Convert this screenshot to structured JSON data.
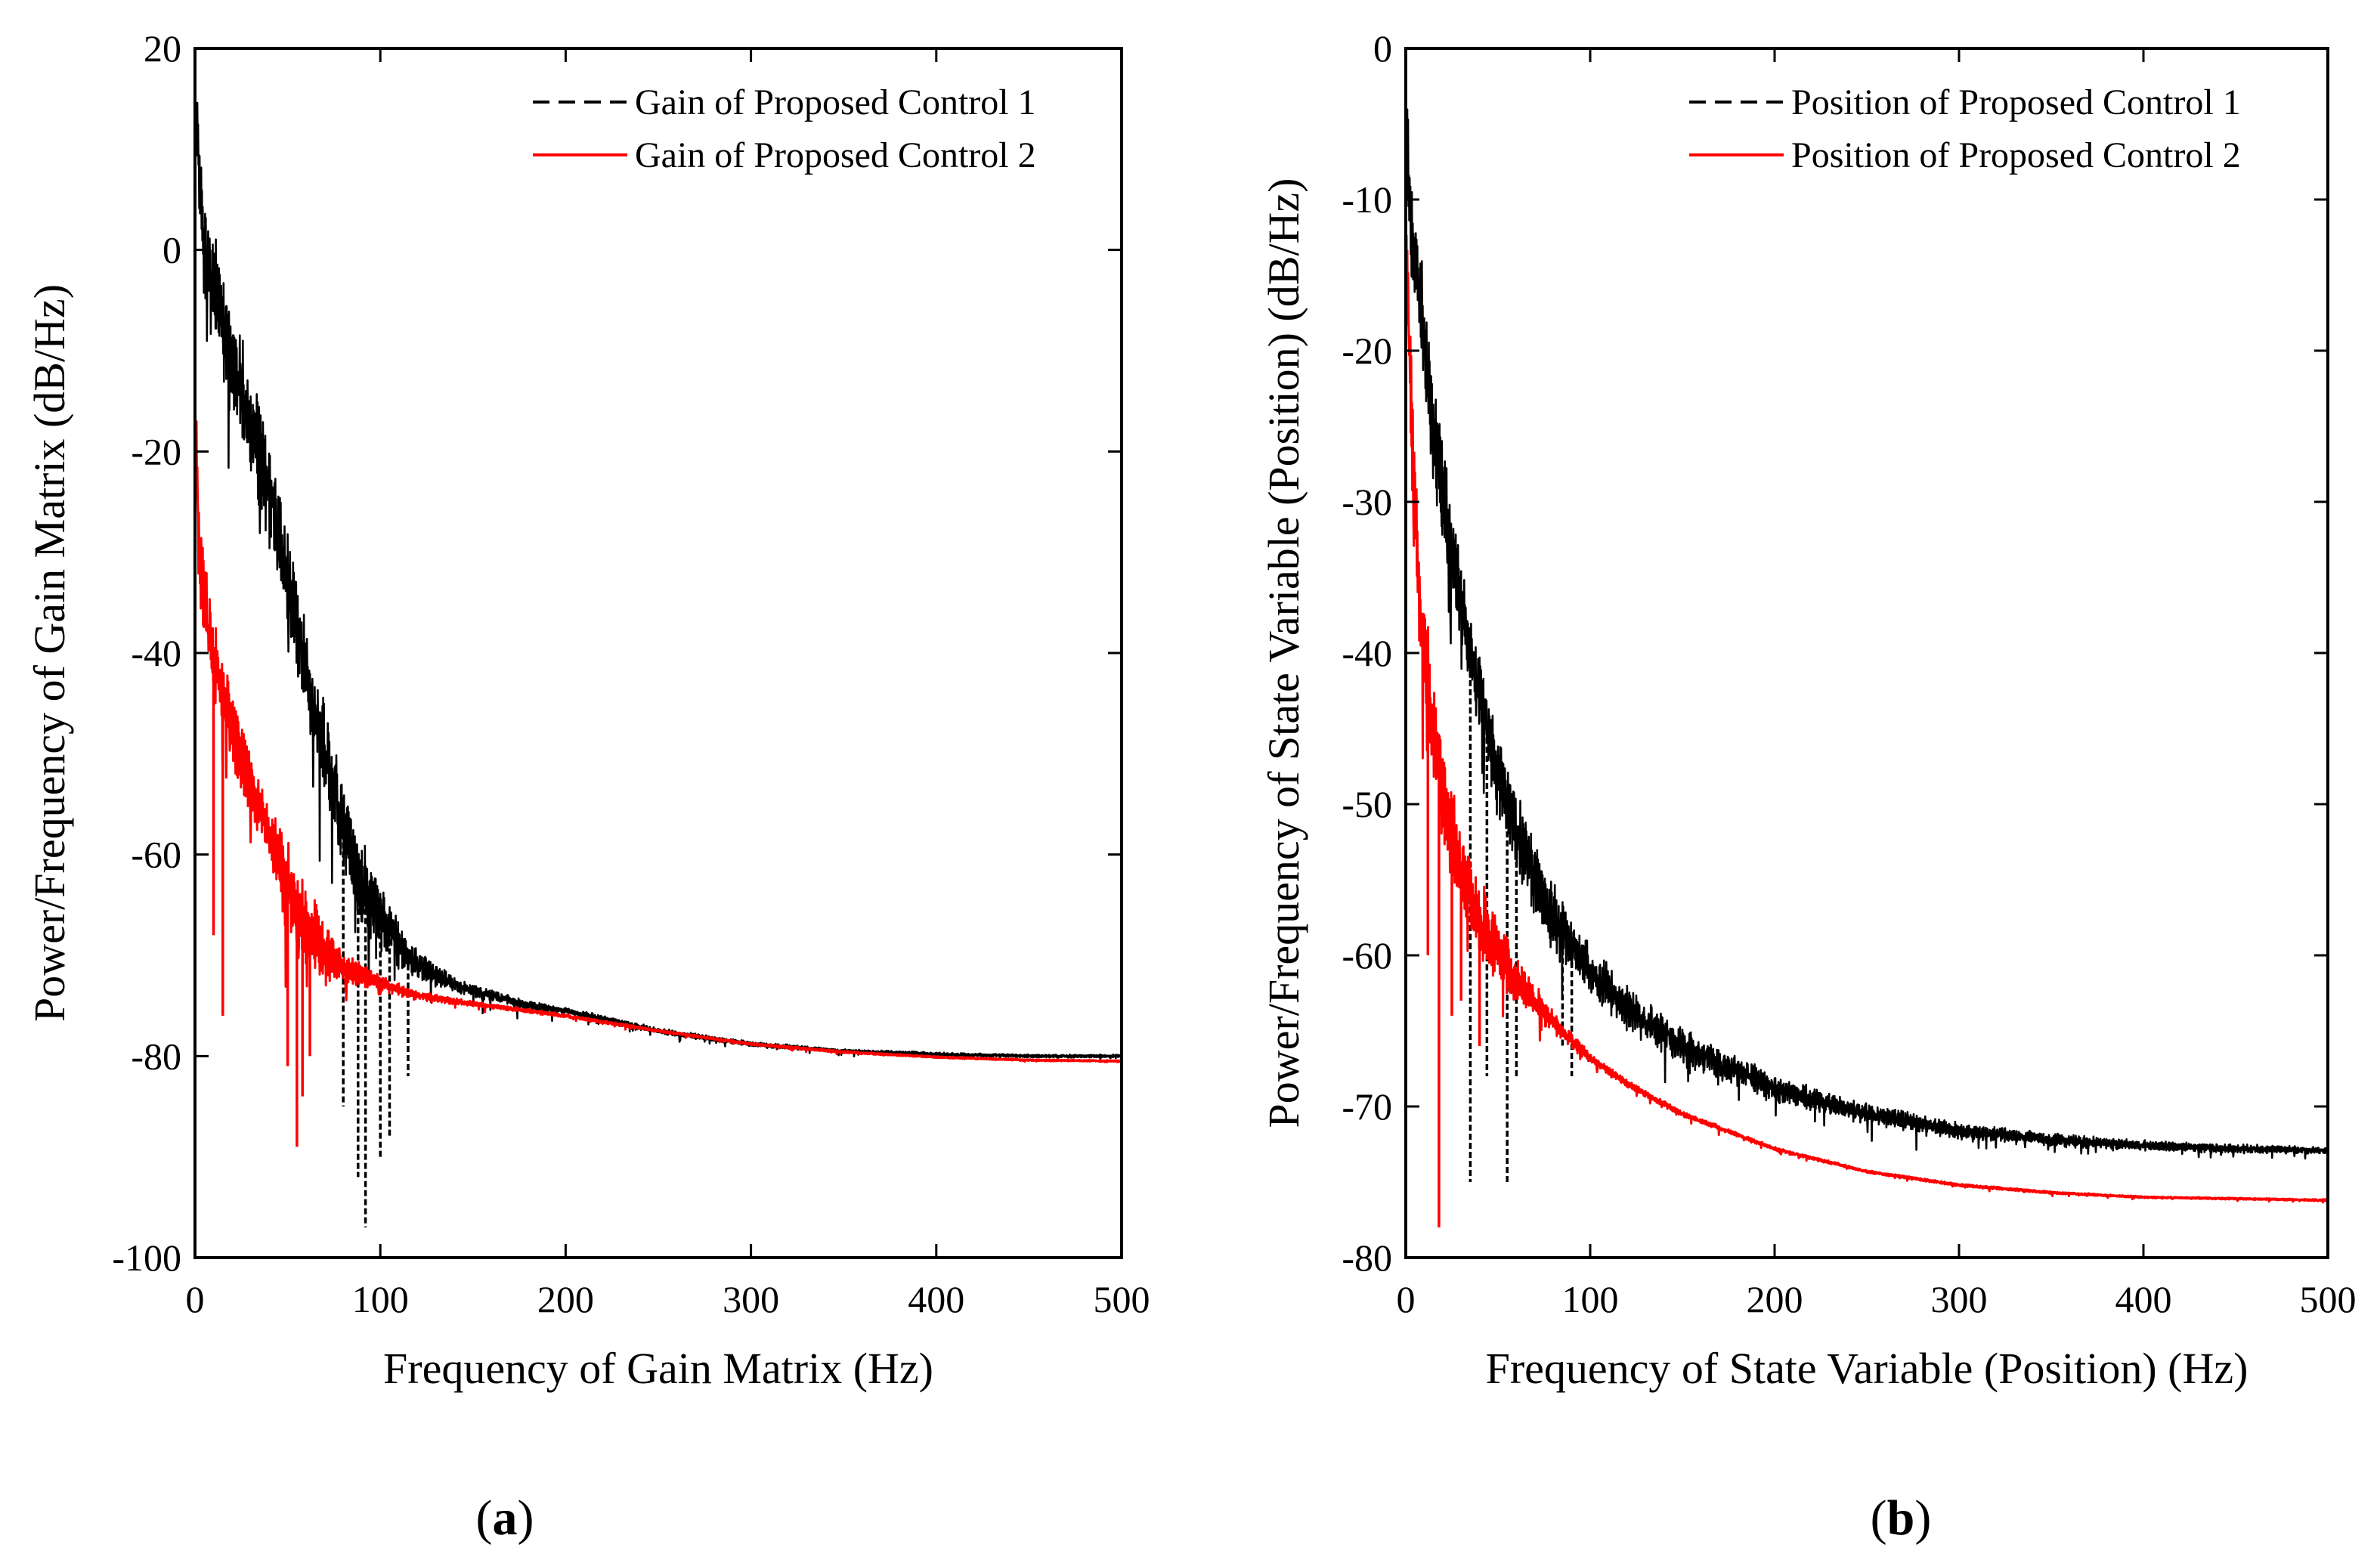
{
  "chart_data": [
    {
      "type": "line",
      "panel_label": "(a)",
      "panel_label_open": "(",
      "panel_label_letter": "a",
      "panel_label_close": ")",
      "title": "",
      "xlabel": "Frequency of Gain Matrix (Hz)",
      "ylabel": "Power/Frequency of Gain Matrix (dB/Hz)",
      "xlim": [
        0,
        500
      ],
      "ylim": [
        -100,
        20
      ],
      "xticks": [
        0,
        100,
        200,
        300,
        400,
        500
      ],
      "xtick_labels": [
        "0",
        "100",
        "200",
        "300",
        "400",
        "500"
      ],
      "yticks": [
        -100,
        -80,
        -60,
        -40,
        -20,
        0,
        20
      ],
      "ytick_labels": [
        "-100",
        "-80",
        "-60",
        "-40",
        "-20",
        "0",
        "20"
      ],
      "grid": false,
      "legend_position": "top-right",
      "series": [
        {
          "name": "Gain of Proposed Control 1",
          "color": "#000000",
          "style": "dashed",
          "x": [
            0,
            2,
            5,
            8,
            12,
            18,
            25,
            32,
            40,
            50,
            60,
            70,
            80,
            90,
            100,
            110,
            120,
            140,
            160,
            180,
            200,
            250,
            300,
            350,
            400,
            450,
            500
          ],
          "y": [
            15,
            8,
            0,
            -2,
            -5,
            -10,
            -14,
            -18,
            -24,
            -32,
            -42,
            -50,
            -57,
            -63,
            -66,
            -69,
            -71,
            -73,
            -74,
            -75,
            -75.5,
            -77.5,
            -78.8,
            -79.5,
            -79.8,
            -80,
            -80
          ],
          "noise_amplitude": [
            6,
            8,
            10,
            10,
            10,
            9,
            9,
            9,
            9,
            8,
            8,
            8,
            8,
            8,
            6,
            4,
            2.5,
            1.5,
            1,
            0.8,
            0.6,
            0.5,
            0.4,
            0.3,
            0.3,
            0.25,
            0.25
          ],
          "dips": [
            [
              92,
              -97
            ],
            [
              100,
              -90
            ],
            [
              88,
              -92
            ],
            [
              105,
              -88
            ],
            [
              80,
              -85
            ],
            [
              115,
              -82
            ]
          ]
        },
        {
          "name": "Gain of Proposed Control 2",
          "color": "#ff0000",
          "style": "solid",
          "x": [
            0,
            2,
            5,
            8,
            12,
            18,
            25,
            32,
            40,
            50,
            60,
            70,
            80,
            90,
            100,
            120,
            150,
            200,
            250,
            300,
            350,
            400,
            450,
            500
          ],
          "y": [
            -17,
            -28,
            -35,
            -38,
            -42,
            -46,
            -50,
            -54,
            -58,
            -63,
            -67,
            -69.5,
            -71,
            -72,
            -72.8,
            -74,
            -74.8,
            -76,
            -77.5,
            -78.8,
            -79.6,
            -80.1,
            -80.4,
            -80.5
          ],
          "noise_amplitude": [
            8,
            8,
            8,
            7,
            7,
            6,
            6,
            5,
            4,
            8,
            7,
            5,
            3,
            2,
            1.2,
            0.8,
            0.4,
            0.3,
            0.2,
            0.2,
            0.2,
            0.15,
            0.15,
            0.15
          ],
          "dips": [
            [
              15,
              -76
            ],
            [
              10,
              -68
            ],
            [
              55,
              -89
            ],
            [
              58,
              -84
            ],
            [
              62,
              -80
            ],
            [
              50,
              -81
            ]
          ]
        }
      ]
    },
    {
      "type": "line",
      "panel_label": "(b)",
      "panel_label_open": "(",
      "panel_label_letter": "b",
      "panel_label_close": ")",
      "title": "",
      "xlabel": "Frequency of State Variable (Position) (Hz)",
      "ylabel": "Power/Frequency of State Variable (Position) (dB/Hz)",
      "xlim": [
        0,
        500
      ],
      "ylim": [
        -80,
        0
      ],
      "xticks": [
        0,
        100,
        200,
        300,
        400,
        500
      ],
      "xtick_labels": [
        "0",
        "100",
        "200",
        "300",
        "400",
        "500"
      ],
      "yticks": [
        -80,
        -70,
        -60,
        -50,
        -40,
        -30,
        -20,
        -10,
        0
      ],
      "ytick_labels": [
        "-80",
        "-70",
        "-60",
        "-50",
        "-40",
        "-30",
        "-20",
        "-10",
        "0"
      ],
      "grid": false,
      "legend_position": "top-right",
      "series": [
        {
          "name": "Position of Proposed Control 1",
          "color": "#000000",
          "style": "dashed",
          "x": [
            0,
            3,
            6,
            9,
            12,
            16,
            20,
            25,
            30,
            40,
            50,
            60,
            70,
            80,
            100,
            120,
            150,
            200,
            250,
            300,
            350,
            400,
            450,
            500
          ],
          "y": [
            -5,
            -12,
            -15,
            -18,
            -22,
            -26,
            -29,
            -33,
            -37,
            -43,
            -48,
            -52,
            -55,
            -57.5,
            -61,
            -63.5,
            -66,
            -68.8,
            -70.5,
            -71.6,
            -72.2,
            -72.6,
            -72.8,
            -72.9
          ],
          "noise_amplitude": [
            6,
            6,
            6,
            6,
            6,
            6,
            6,
            5,
            5,
            5,
            5,
            5,
            4.5,
            4,
            3,
            2.5,
            2,
            1.5,
            1.2,
            0.9,
            0.7,
            0.6,
            0.5,
            0.4
          ],
          "dips": [
            [
              35,
              -75
            ],
            [
              55,
              -75
            ],
            [
              44,
              -68
            ],
            [
              60,
              -68
            ],
            [
              85,
              -66
            ],
            [
              90,
              -68
            ]
          ]
        },
        {
          "name": "Position of Proposed Control 2",
          "color": "#ff0000",
          "style": "solid",
          "x": [
            0,
            2,
            4,
            6,
            10,
            15,
            20,
            25,
            30,
            40,
            50,
            60,
            70,
            80,
            100,
            120,
            150,
            200,
            250,
            300,
            350,
            400,
            450,
            500
          ],
          "y": [
            -12,
            -20,
            -28,
            -34,
            -40,
            -45,
            -49,
            -52,
            -54.5,
            -57.5,
            -59.5,
            -61.5,
            -63,
            -64.5,
            -66.8,
            -68.5,
            -70.5,
            -72.8,
            -74.3,
            -75.2,
            -75.7,
            -76,
            -76.1,
            -76.2
          ],
          "noise_amplitude": [
            7,
            7,
            7,
            7,
            7,
            6,
            6,
            5,
            5,
            4.5,
            4,
            3,
            2,
            1.2,
            0.6,
            0.4,
            0.3,
            0.2,
            0.15,
            0.15,
            0.15,
            0.1,
            0.1,
            0.1
          ],
          "dips": [
            [
              18,
              -78
            ],
            [
              12,
              -60
            ],
            [
              25,
              -64
            ],
            [
              30,
              -63
            ],
            [
              40,
              -66
            ]
          ]
        }
      ]
    }
  ]
}
